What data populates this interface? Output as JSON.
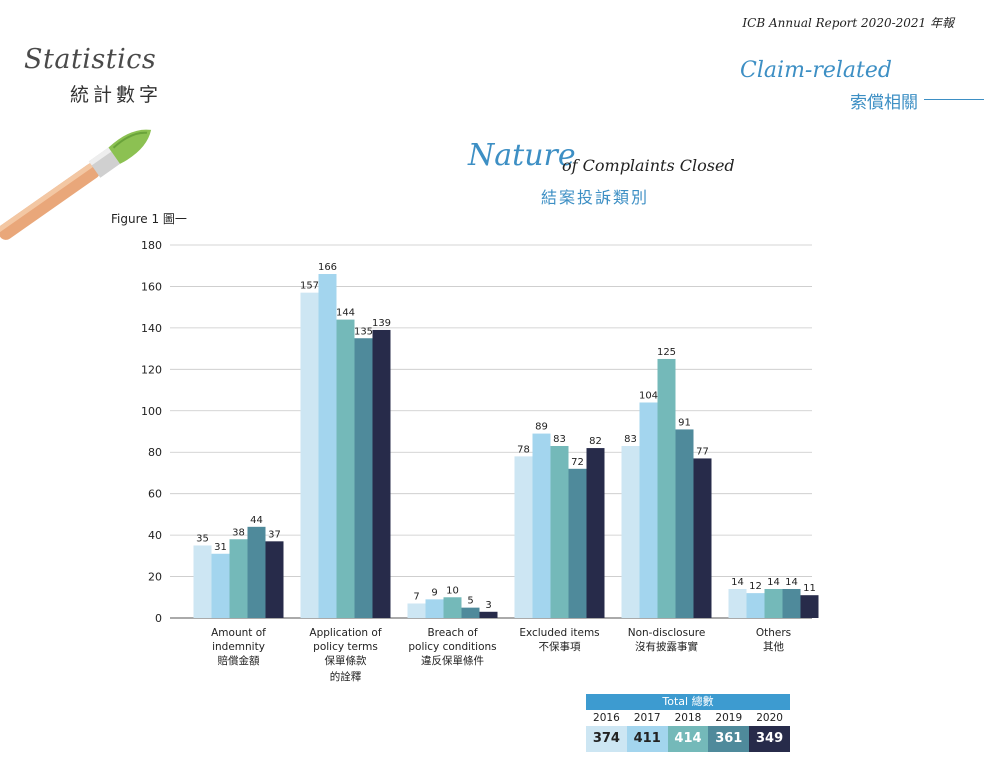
{
  "header": {
    "report": "ICB Annual Report 2020-2021 年報"
  },
  "page": {
    "stats_en": "Statistics",
    "stats_zh": "統計數字",
    "section_en": "Claim-related",
    "section_zh": "索償相關",
    "title_big": "Nature",
    "title_small": "of Complaints Closed",
    "title_zh": "結案投訴類別",
    "figure_label": "Figure 1 圖一"
  },
  "colors": {
    "y2016": "#cde6f3",
    "y2017": "#a3d5ee",
    "y2018": "#74b9b9",
    "y2019": "#4f8a9b",
    "y2020": "#272b4a",
    "accent": "#3d8fc4"
  },
  "chart_data": {
    "type": "bar",
    "categories": [
      [
        "Amount of",
        "indemnity",
        "賠償金額"
      ],
      [
        "Application of",
        "policy terms",
        "保單條款",
        "的詮釋"
      ],
      [
        "Breach of",
        "policy conditions",
        "違反保單條件"
      ],
      [
        "Excluded items",
        "不保事項"
      ],
      [
        "Non-disclosure",
        "沒有披露事實"
      ],
      [
        "Others",
        "其他"
      ]
    ],
    "series": [
      {
        "name": "2016",
        "values": [
          35,
          157,
          7,
          78,
          83,
          14
        ]
      },
      {
        "name": "2017",
        "values": [
          31,
          166,
          9,
          89,
          104,
          12
        ]
      },
      {
        "name": "2018",
        "values": [
          38,
          144,
          10,
          83,
          125,
          14
        ]
      },
      {
        "name": "2019",
        "values": [
          44,
          135,
          5,
          72,
          91,
          14
        ]
      },
      {
        "name": "2020",
        "values": [
          37,
          139,
          3,
          82,
          77,
          11
        ]
      }
    ],
    "ylim": [
      0,
      180
    ],
    "yticks": [
      0,
      20,
      40,
      60,
      80,
      100,
      120,
      140,
      160,
      180
    ],
    "grid": true
  },
  "totals": {
    "label": "Total 總數",
    "years": [
      "2016",
      "2017",
      "2018",
      "2019",
      "2020"
    ],
    "values": [
      "374",
      "411",
      "414",
      "361",
      "349"
    ]
  }
}
